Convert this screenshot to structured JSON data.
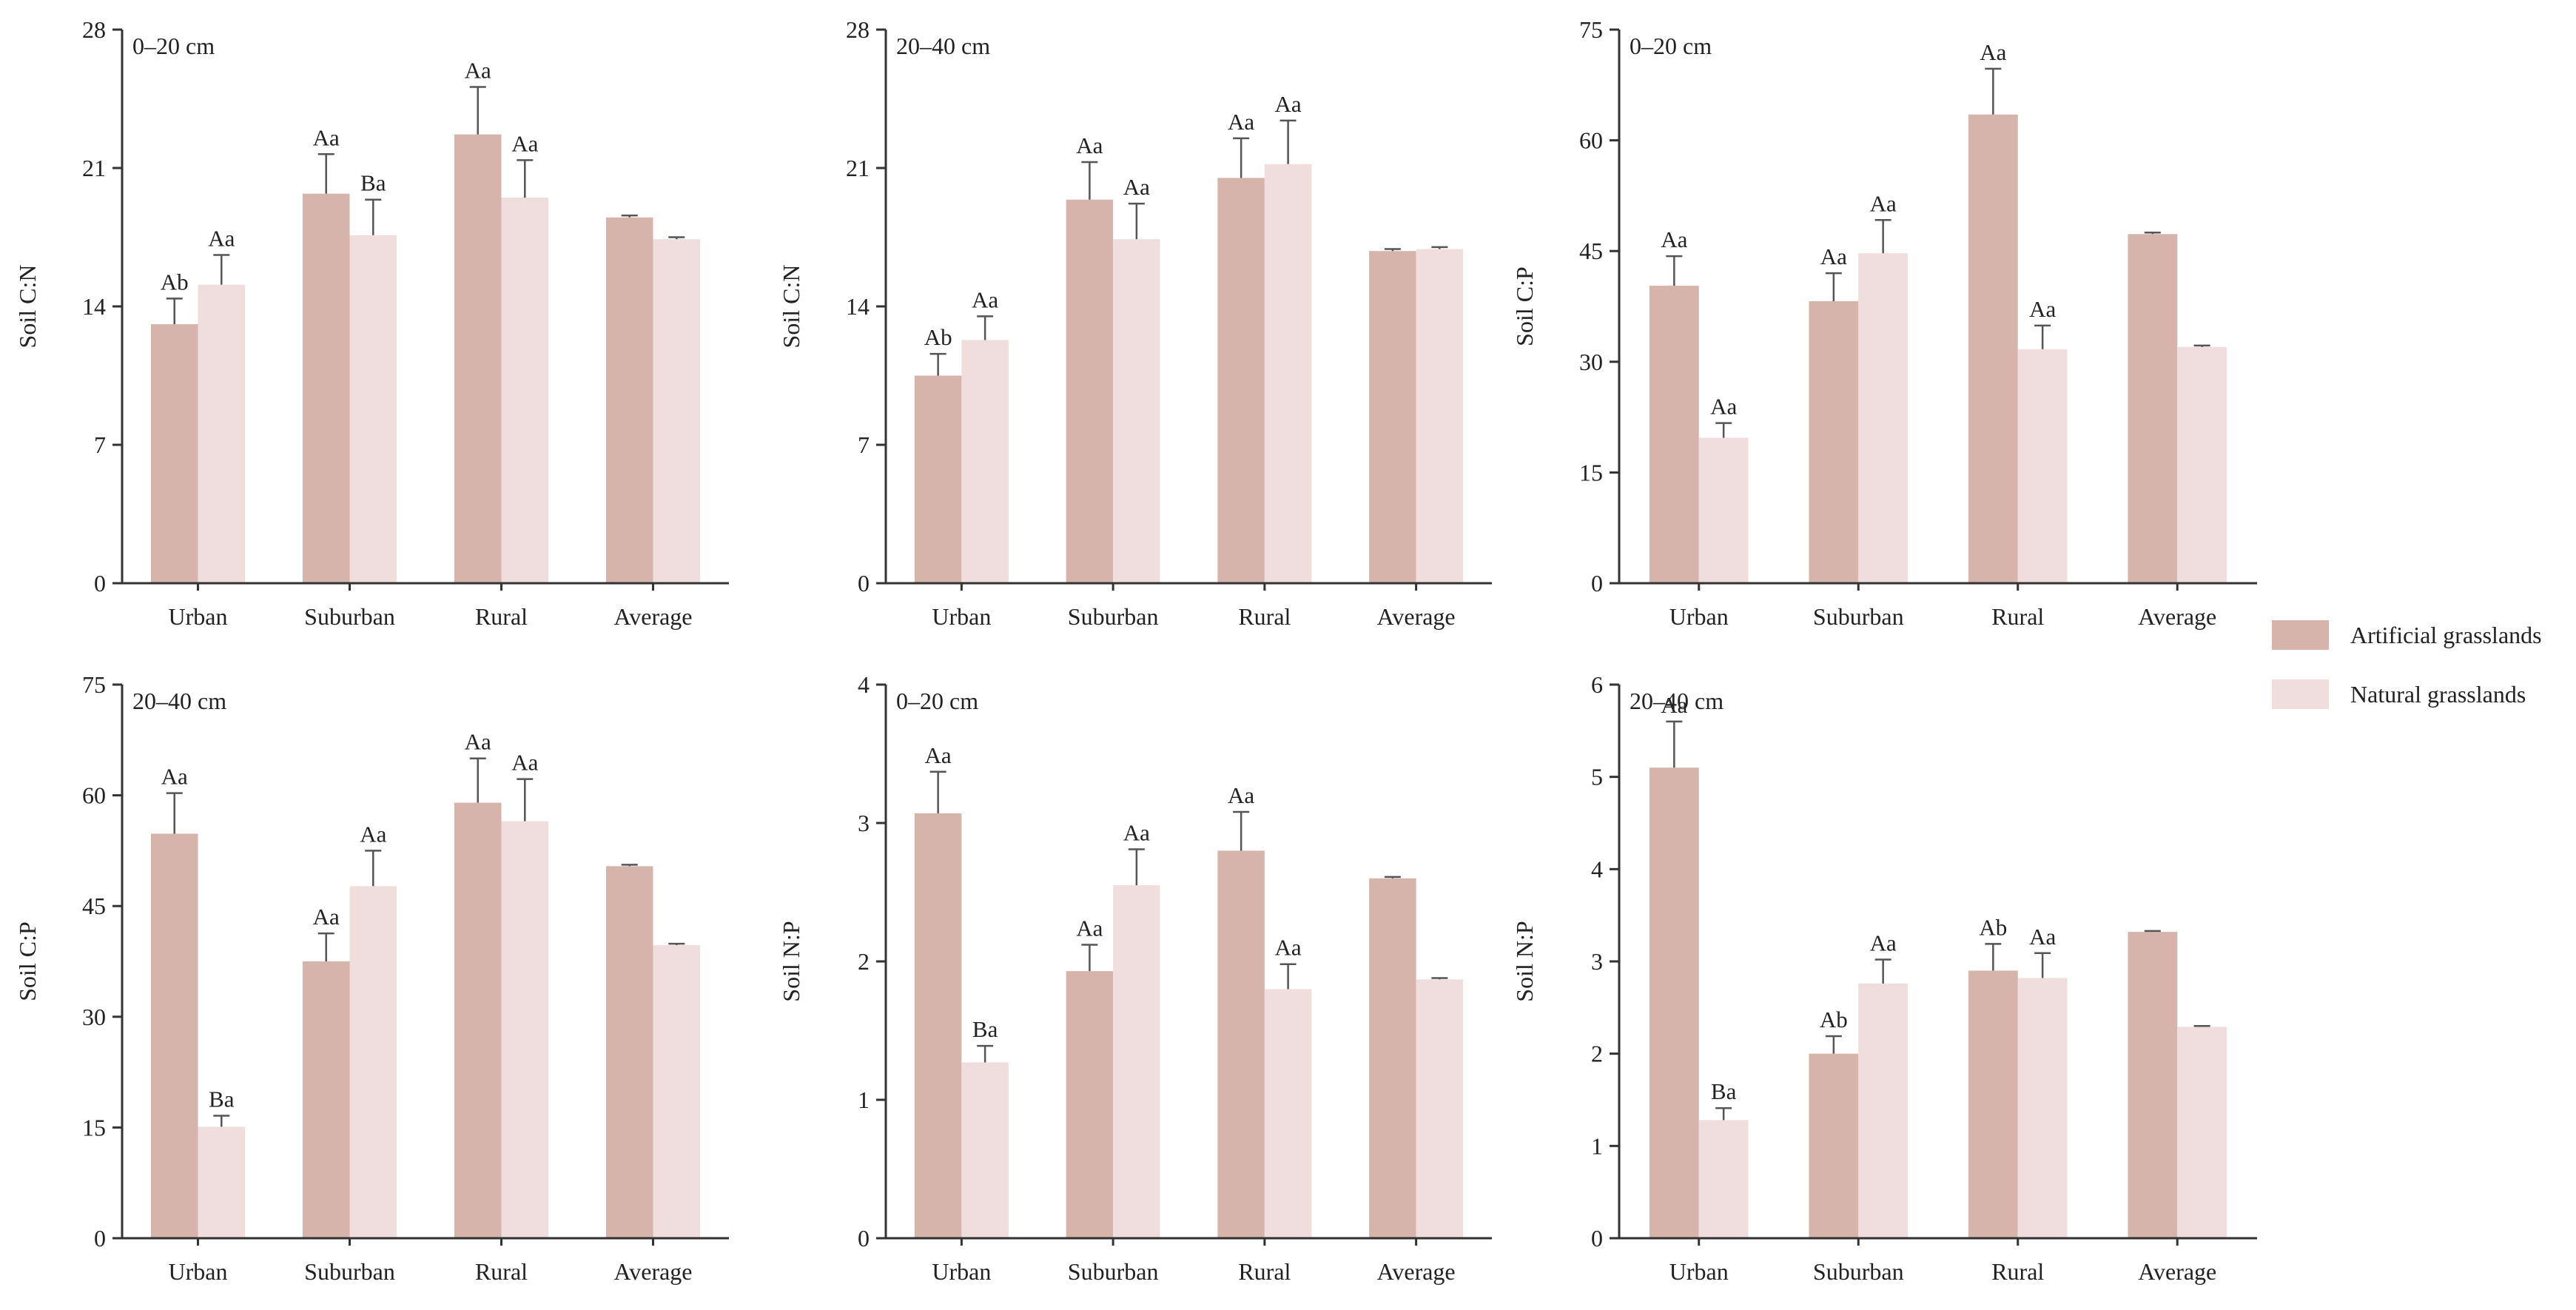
{
  "colors": {
    "artificial": "#d6b4ab",
    "natural": "#f0dede",
    "axis": "#333333",
    "text": "#222222"
  },
  "legend": {
    "placement": "right-middle",
    "items": [
      {
        "label": "Artificial grasslands",
        "color": "#d6b4ab"
      },
      {
        "label": "Natural grasslands",
        "color": "#f0dede"
      }
    ]
  },
  "chart_data": [
    {
      "type": "bar",
      "title": "0–20 cm",
      "ylabel": "Soil C:N",
      "ylim": [
        0,
        28
      ],
      "yticks": [
        "0",
        "7",
        "14",
        "21",
        "28"
      ],
      "categories": [
        "Urban",
        "Suburban",
        "Rural",
        "Average"
      ],
      "series": [
        {
          "name": "Artificial grasslands",
          "values": [
            13.1,
            19.7,
            22.7,
            18.5
          ],
          "errors": [
            1.3,
            2.0,
            2.4,
            0.1
          ],
          "labels": [
            "Ab",
            "Aa",
            "Aa",
            ""
          ]
        },
        {
          "name": "Natural grasslands",
          "values": [
            15.1,
            17.6,
            19.5,
            17.4
          ],
          "errors": [
            1.5,
            1.8,
            1.9,
            0.1
          ],
          "labels": [
            "Aa",
            "Ba",
            "Aa",
            ""
          ]
        }
      ]
    },
    {
      "type": "bar",
      "title": "20–40 cm",
      "ylabel": "Soil C:N",
      "ylim": [
        0,
        28
      ],
      "yticks": [
        "0",
        "7",
        "14",
        "21",
        "28"
      ],
      "categories": [
        "Urban",
        "Suburban",
        "Rural",
        "Average"
      ],
      "series": [
        {
          "name": "Artificial grasslands",
          "values": [
            10.5,
            19.4,
            20.5,
            16.8
          ],
          "errors": [
            1.1,
            1.9,
            2.0,
            0.1
          ],
          "labels": [
            "Ab",
            "Aa",
            "Aa",
            ""
          ]
        },
        {
          "name": "Natural grasslands",
          "values": [
            12.3,
            17.4,
            21.2,
            16.9
          ],
          "errors": [
            1.2,
            1.8,
            2.2,
            0.1
          ],
          "labels": [
            "Aa",
            "Aa",
            "Aa",
            ""
          ]
        }
      ]
    },
    {
      "type": "bar",
      "title": "0–20 cm",
      "ylabel": "Soil C:P",
      "ylim": [
        0,
        75
      ],
      "yticks": [
        "0",
        "15",
        "30",
        "45",
        "60",
        "75"
      ],
      "categories": [
        "Urban",
        "Suburban",
        "Rural",
        "Average"
      ],
      "series": [
        {
          "name": "Artificial grasslands",
          "values": [
            40.3,
            38.2,
            63.5,
            47.3
          ],
          "errors": [
            4.0,
            3.8,
            6.2,
            0.2
          ],
          "labels": [
            "Aa",
            "Aa",
            "Aa",
            ""
          ]
        },
        {
          "name": "Natural grasslands",
          "values": [
            19.7,
            44.7,
            31.7,
            32.0
          ],
          "errors": [
            2.0,
            4.5,
            3.2,
            0.2
          ],
          "labels": [
            "Aa",
            "Aa",
            "Aa",
            ""
          ]
        }
      ]
    },
    {
      "type": "bar",
      "title": "20–40 cm",
      "ylabel": "Soil C:P",
      "ylim": [
        0,
        75
      ],
      "yticks": [
        "0",
        "15",
        "30",
        "45",
        "60",
        "75"
      ],
      "categories": [
        "Urban",
        "Suburban",
        "Rural",
        "Average"
      ],
      "series": [
        {
          "name": "Artificial grasslands",
          "values": [
            54.8,
            37.5,
            59.0,
            50.4
          ],
          "errors": [
            5.5,
            3.8,
            6.0,
            0.2
          ],
          "labels": [
            "Aa",
            "Aa",
            "Aa",
            ""
          ]
        },
        {
          "name": "Natural grasslands",
          "values": [
            15.1,
            47.7,
            56.5,
            39.7
          ],
          "errors": [
            1.5,
            4.8,
            5.7,
            0.2
          ],
          "labels": [
            "Ba",
            "Aa",
            "Aa",
            ""
          ]
        }
      ]
    },
    {
      "type": "bar",
      "title": "0–20 cm",
      "ylabel": "Soil N:P",
      "ylim": [
        0,
        4
      ],
      "yticks": [
        "0",
        "1",
        "2",
        "3",
        "4"
      ],
      "categories": [
        "Urban",
        "Suburban",
        "Rural",
        "Average"
      ],
      "series": [
        {
          "name": "Artificial grasslands",
          "values": [
            3.07,
            1.93,
            2.8,
            2.6
          ],
          "errors": [
            0.3,
            0.19,
            0.28,
            0.01
          ],
          "labels": [
            "Aa",
            "Aa",
            "Aa",
            ""
          ]
        },
        {
          "name": "Natural grasslands",
          "values": [
            1.27,
            2.55,
            1.8,
            1.87
          ],
          "errors": [
            0.12,
            0.26,
            0.18,
            0.01
          ],
          "labels": [
            "Ba",
            "Aa",
            "Aa",
            ""
          ]
        }
      ]
    },
    {
      "type": "bar",
      "title": "20–40 cm",
      "ylabel": "Soil N:P",
      "ylim": [
        0,
        6
      ],
      "yticks": [
        "0",
        "1",
        "2",
        "3",
        "4",
        "5",
        "6"
      ],
      "categories": [
        "Urban",
        "Suburban",
        "Rural",
        "Average"
      ],
      "series": [
        {
          "name": "Artificial grasslands",
          "values": [
            5.1,
            2.0,
            2.9,
            3.32
          ],
          "errors": [
            0.5,
            0.19,
            0.29,
            0.01
          ],
          "labels": [
            "Aa",
            "Ab",
            "Ab",
            ""
          ]
        },
        {
          "name": "Natural grasslands",
          "values": [
            1.28,
            2.76,
            2.82,
            2.29
          ],
          "errors": [
            0.13,
            0.26,
            0.27,
            0.01
          ],
          "labels": [
            "Ba",
            "Aa",
            "Aa",
            ""
          ]
        }
      ]
    }
  ]
}
